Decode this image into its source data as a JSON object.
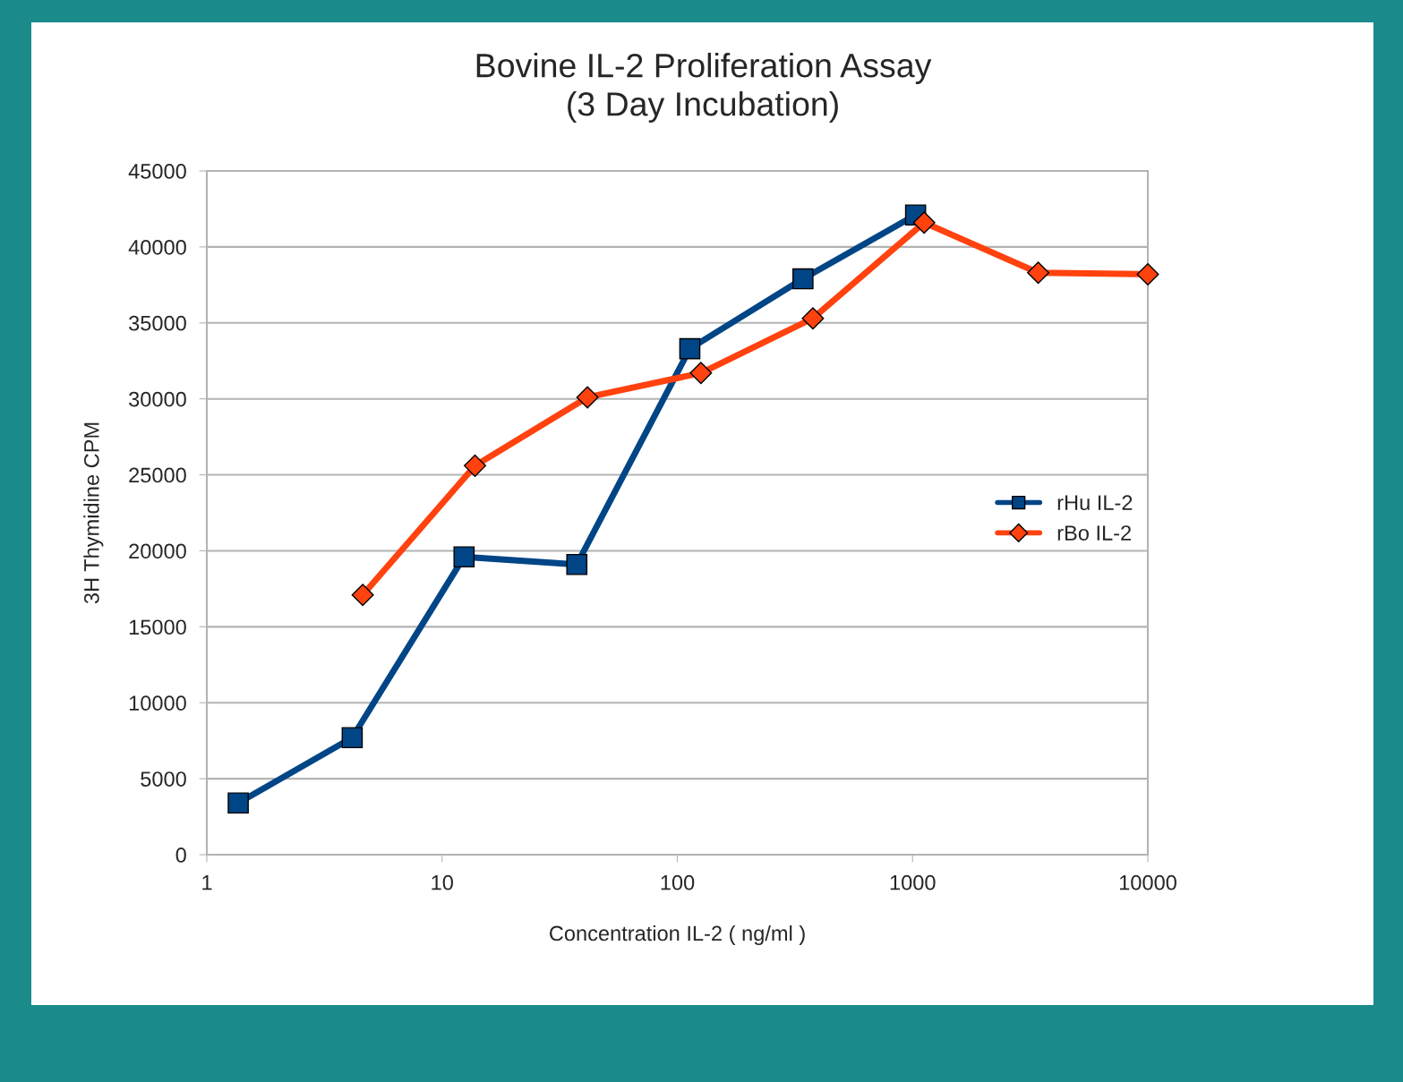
{
  "chart_data": {
    "type": "line",
    "title": "Bovine IL-2 Proliferation Assay\n(3 Day Incubation)",
    "xlabel": "Concentration IL-2 ( ng/ml )",
    "ylabel": "3H Thymidine CPM",
    "log": "x",
    "xlim": [
      1,
      10000
    ],
    "xticks": [
      1,
      10,
      100,
      1000,
      10000
    ],
    "ylim": [
      0,
      45000
    ],
    "yticks": [
      0,
      5000,
      10000,
      15000,
      20000,
      25000,
      30000,
      35000,
      40000,
      45000
    ],
    "grid": "y",
    "legend": "right",
    "series": [
      {
        "name": "rHu IL-2",
        "color": "#004586",
        "marker": "square",
        "x": [
          1.36,
          4.15,
          12.4,
          37.4,
          113,
          342,
          1030
        ],
        "values": [
          3400,
          7700,
          19600,
          19100,
          33300,
          37900,
          42100
        ]
      },
      {
        "name": "rBo IL-2",
        "color": "#ff420e",
        "marker": "diamond",
        "x": [
          4.6,
          13.8,
          41.5,
          126,
          377,
          1120,
          3420,
          10000
        ],
        "values": [
          17100,
          25600,
          30100,
          31700,
          35300,
          41600,
          38300,
          38200
        ]
      }
    ]
  }
}
